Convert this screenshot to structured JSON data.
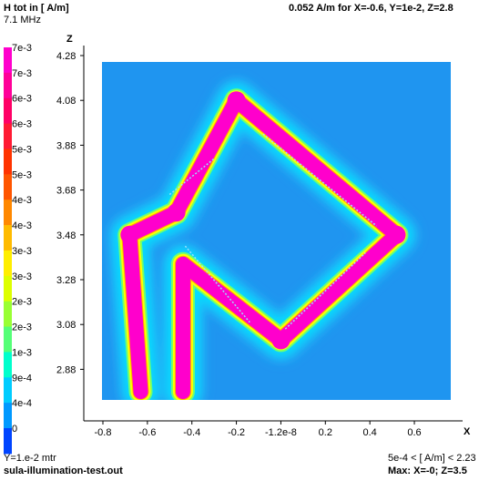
{
  "header": {
    "quantity": "H tot in [ A/m]",
    "frequency": "7.1 MHz",
    "readout": "0.052  A/m for X=-0.6, Y=1e-2, Z=2.8"
  },
  "footer": {
    "plane": "Y=1.e-2 mtr",
    "file": "sula-illumination-test.out",
    "range": "5e-4 < [ A/m] < 2.23",
    "max": "Max: X=-0; Z=3.5"
  },
  "colors": {
    "background_field": "#1f95f0",
    "saturated": "#ff00cc",
    "halo": [
      "#00e0ff",
      "#70ff70",
      "#ffff00"
    ]
  },
  "chart_data": {
    "type": "heatmap",
    "xlabel": "X",
    "ylabel": "Z",
    "x_ticks": [
      "-0.8",
      "-0.6",
      "-0.4",
      "-0.2",
      "-1.2e-8",
      "0.2",
      "0.4",
      "0.6"
    ],
    "x_tick_values": [
      -0.8,
      -0.6,
      -0.4,
      -0.2,
      0.0,
      0.2,
      0.4,
      0.6
    ],
    "z_ticks": [
      "4.28",
      "4.08",
      "3.88",
      "3.68",
      "3.48",
      "3.28",
      "3.08",
      "2.88"
    ],
    "z_tick_values": [
      4.28,
      4.08,
      3.88,
      3.68,
      3.48,
      3.28,
      3.08,
      2.88
    ],
    "xlim": [
      -0.8,
      0.6
    ],
    "zlim": [
      2.88,
      4.28
    ],
    "legend": {
      "placement": "left",
      "labels": [
        "7e-3",
        "7e-3",
        "6e-3",
        "6e-3",
        "5e-3",
        "5e-3",
        "4e-3",
        "4e-3",
        "3e-3",
        "3e-3",
        "2e-3",
        "2e-3",
        "1e-3",
        "9e-4",
        "4e-4",
        "0"
      ],
      "colors": [
        "#ff00cc",
        "#ff0099",
        "#ff0066",
        "#ff1a33",
        "#ff3300",
        "#ff5500",
        "#ff8800",
        "#ffbb00",
        "#ffee00",
        "#ddff00",
        "#99ff33",
        "#55ff77",
        "#00ffcc",
        "#00ccff",
        "#0099ff",
        "#0044ff"
      ]
    },
    "wire_path": [
      [
        -0.63,
        2.78
      ],
      [
        -0.68,
        3.48
      ],
      [
        -0.47,
        3.58
      ],
      [
        -0.2,
        4.08
      ],
      [
        0.52,
        3.48
      ],
      [
        0.0,
        3.01
      ],
      [
        -0.44,
        3.35
      ],
      [
        -0.44,
        2.78
      ]
    ]
  }
}
